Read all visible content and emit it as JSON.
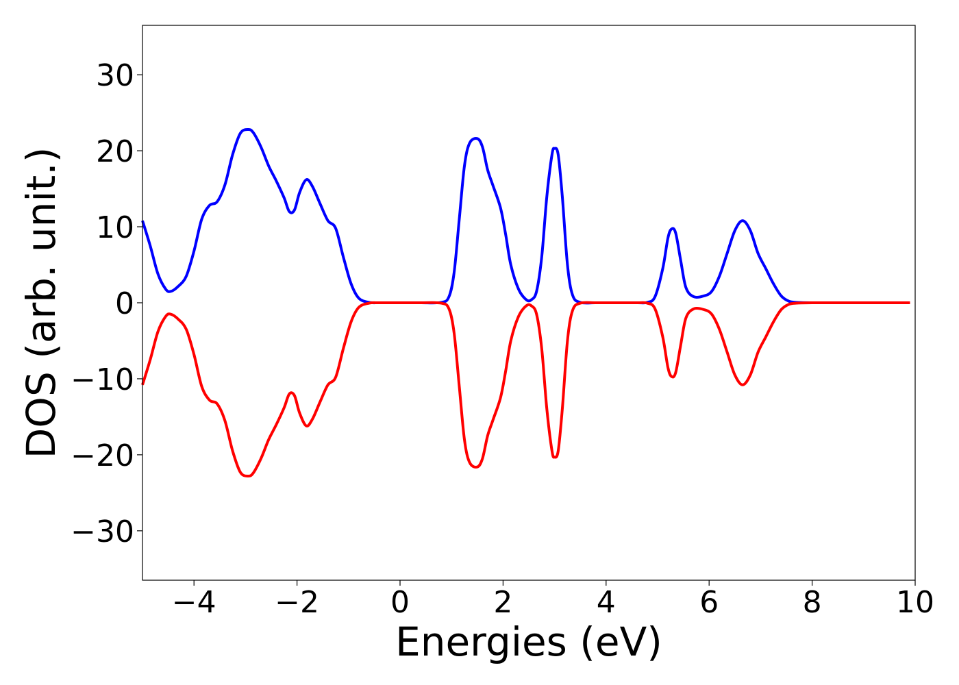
{
  "chart_data": {
    "type": "line",
    "title": "",
    "xlabel": "Energies (eV)",
    "ylabel": "DOS (arb. unit.)",
    "xlim": [
      -5,
      10
    ],
    "ylim": [
      -36.5,
      36.5
    ],
    "xticks": [
      -4,
      -2,
      0,
      2,
      4,
      6,
      8,
      10
    ],
    "xtick_labels": [
      "−4",
      "−2",
      "0",
      "2",
      "4",
      "6",
      "8",
      "10"
    ],
    "yticks": [
      30,
      20,
      10,
      0,
      -10,
      -20,
      -30
    ],
    "ytick_labels": [
      "30",
      "20",
      "10",
      "0",
      "−10",
      "−20",
      "−30"
    ],
    "grid": false,
    "legend": "none",
    "series": [
      {
        "color": "#0000ff",
        "x": [
          -5.0,
          -4.85,
          -4.7,
          -4.55,
          -4.45,
          -4.3,
          -4.15,
          -4.0,
          -3.85,
          -3.7,
          -3.55,
          -3.4,
          -3.25,
          -3.1,
          -2.95,
          -2.85,
          -2.7,
          -2.55,
          -2.4,
          -2.25,
          -2.15,
          -2.05,
          -1.95,
          -1.82,
          -1.7,
          -1.55,
          -1.4,
          -1.25,
          -1.1,
          -0.95,
          -0.8,
          -0.6,
          -0.4,
          0.0,
          0.4,
          0.8,
          0.95,
          1.05,
          1.15,
          1.25,
          1.35,
          1.5,
          1.6,
          1.7,
          1.8,
          1.95,
          2.05,
          2.15,
          2.3,
          2.45,
          2.55,
          2.65,
          2.75,
          2.85,
          2.95,
          3.0,
          3.07,
          3.15,
          3.25,
          3.35,
          3.5,
          3.8,
          4.2,
          4.6,
          4.8,
          4.95,
          5.1,
          5.2,
          5.27,
          5.35,
          5.45,
          5.55,
          5.7,
          5.9,
          6.05,
          6.2,
          6.35,
          6.5,
          6.65,
          6.8,
          6.95,
          7.1,
          7.25,
          7.4,
          7.55,
          7.7,
          8.0,
          9.0,
          9.9
        ],
        "y": [
          10.8,
          7.5,
          3.8,
          1.8,
          1.5,
          2.2,
          3.5,
          6.8,
          11.0,
          12.8,
          13.3,
          15.5,
          19.5,
          22.3,
          22.8,
          22.4,
          20.5,
          18.0,
          16.0,
          13.8,
          12.0,
          12.2,
          14.5,
          16.2,
          15.3,
          13.0,
          10.8,
          9.8,
          6.0,
          2.5,
          0.6,
          0.05,
          0.0,
          0.0,
          0.0,
          0.05,
          0.8,
          4.0,
          11.0,
          18.0,
          21.0,
          21.6,
          20.5,
          17.5,
          15.5,
          12.5,
          9.0,
          5.0,
          1.8,
          0.4,
          0.4,
          1.5,
          6.0,
          14.0,
          19.5,
          20.3,
          19.5,
          14.0,
          5.0,
          1.0,
          0.05,
          0.0,
          0.0,
          0.0,
          0.05,
          0.8,
          4.5,
          8.5,
          9.7,
          9.2,
          5.5,
          2.0,
          0.8,
          0.9,
          1.5,
          3.5,
          6.5,
          9.5,
          10.8,
          9.5,
          6.5,
          4.5,
          2.5,
          0.9,
          0.2,
          0.05,
          0.0,
          0.0,
          0.0
        ]
      },
      {
        "color": "#ff0000",
        "x": [
          -5.0,
          -4.85,
          -4.7,
          -4.55,
          -4.45,
          -4.3,
          -4.15,
          -4.0,
          -3.85,
          -3.7,
          -3.55,
          -3.4,
          -3.25,
          -3.1,
          -2.95,
          -2.85,
          -2.7,
          -2.55,
          -2.4,
          -2.25,
          -2.15,
          -2.05,
          -1.95,
          -1.82,
          -1.7,
          -1.55,
          -1.4,
          -1.25,
          -1.1,
          -0.95,
          -0.8,
          -0.6,
          -0.4,
          0.0,
          0.4,
          0.8,
          0.95,
          1.05,
          1.15,
          1.25,
          1.35,
          1.5,
          1.6,
          1.7,
          1.8,
          1.95,
          2.05,
          2.15,
          2.3,
          2.45,
          2.55,
          2.65,
          2.75,
          2.85,
          2.95,
          3.0,
          3.07,
          3.15,
          3.25,
          3.35,
          3.5,
          3.8,
          4.2,
          4.6,
          4.8,
          4.95,
          5.1,
          5.2,
          5.27,
          5.35,
          5.45,
          5.55,
          5.7,
          5.9,
          6.05,
          6.2,
          6.35,
          6.5,
          6.65,
          6.8,
          6.95,
          7.1,
          7.25,
          7.4,
          7.55,
          7.7,
          8.0,
          9.0,
          9.9
        ],
        "y": [
          -10.8,
          -7.5,
          -3.8,
          -1.8,
          -1.5,
          -2.2,
          -3.5,
          -6.8,
          -11.0,
          -12.8,
          -13.3,
          -15.5,
          -19.5,
          -22.3,
          -22.8,
          -22.4,
          -20.5,
          -18.0,
          -16.0,
          -13.8,
          -12.0,
          -12.2,
          -14.5,
          -16.2,
          -15.3,
          -13.0,
          -10.8,
          -9.8,
          -6.0,
          -2.5,
          -0.6,
          -0.05,
          0.0,
          0.0,
          0.0,
          -0.05,
          -0.8,
          -4.0,
          -11.0,
          -18.0,
          -21.0,
          -21.6,
          -20.5,
          -17.5,
          -15.5,
          -12.5,
          -9.0,
          -5.0,
          -1.8,
          -0.4,
          -0.4,
          -1.5,
          -6.0,
          -14.0,
          -19.5,
          -20.3,
          -19.5,
          -14.0,
          -5.0,
          -1.0,
          -0.05,
          0.0,
          0.0,
          0.0,
          -0.05,
          -0.8,
          -4.5,
          -8.5,
          -9.7,
          -9.2,
          -5.5,
          -2.0,
          -0.8,
          -0.9,
          -1.5,
          -3.5,
          -6.5,
          -9.5,
          -10.8,
          -9.5,
          -6.5,
          -4.5,
          -2.5,
          -0.9,
          -0.2,
          -0.05,
          0.0,
          0.0,
          0.0
        ]
      }
    ]
  }
}
